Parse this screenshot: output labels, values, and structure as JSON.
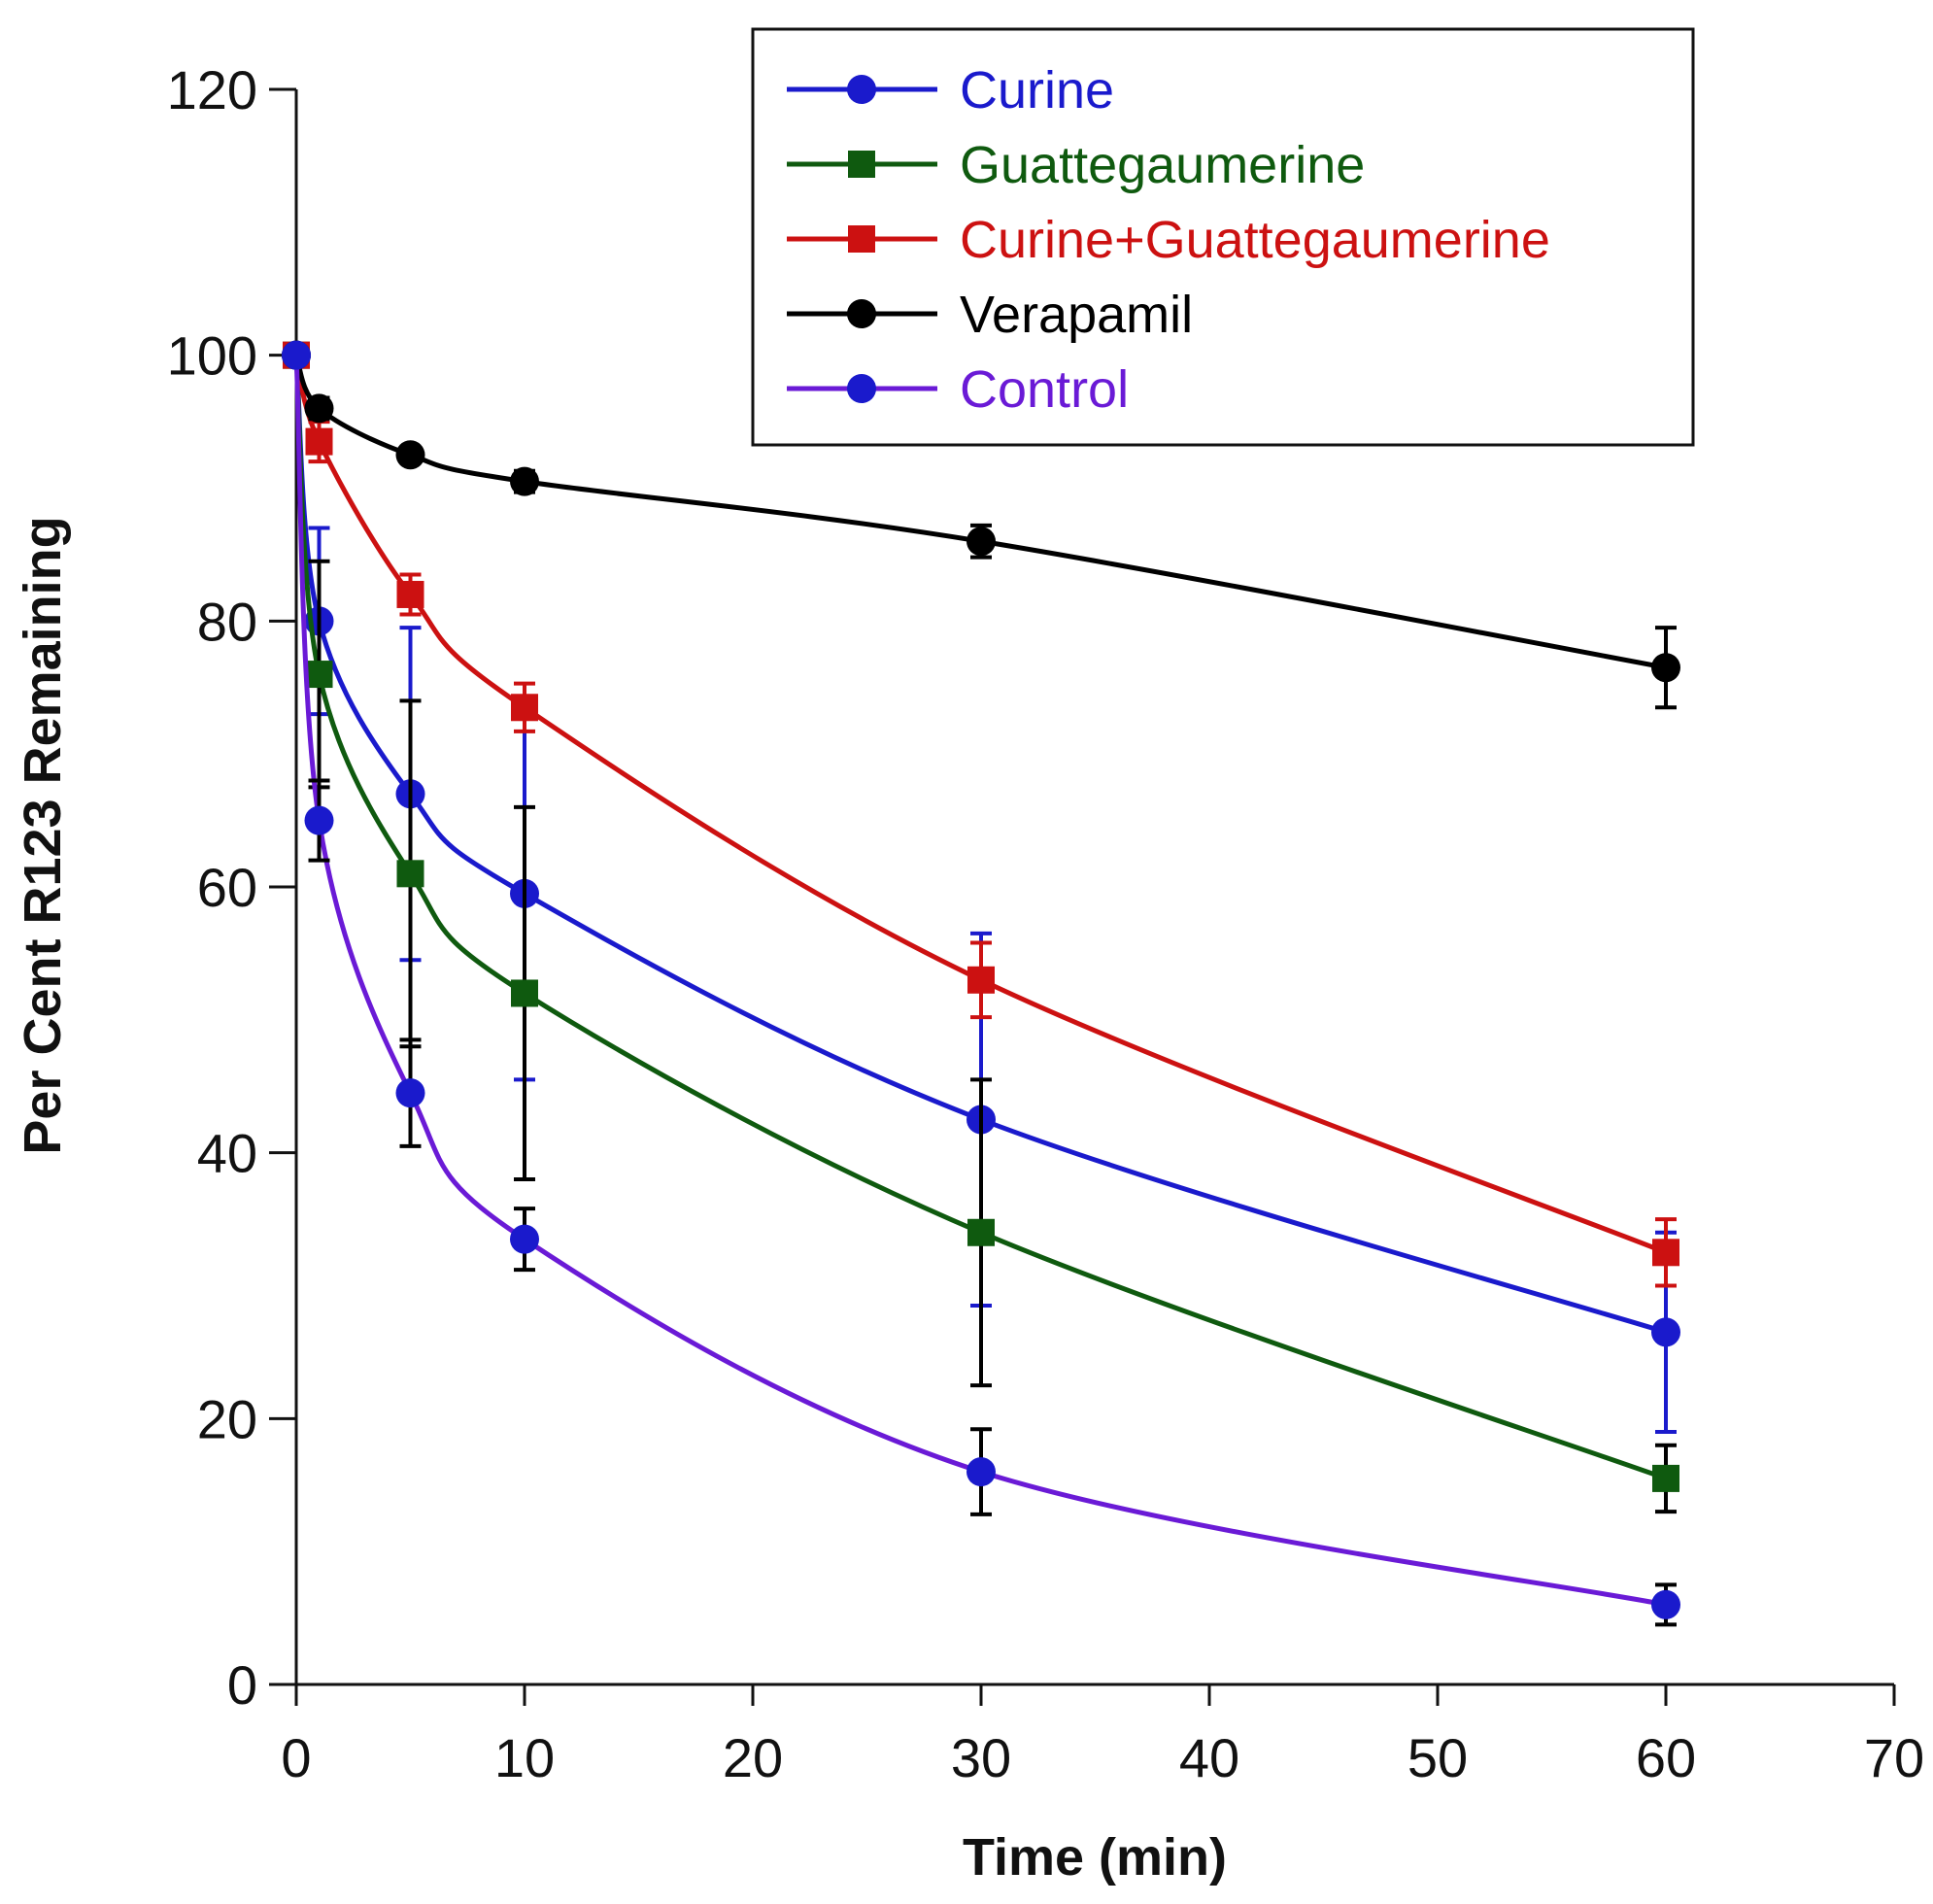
{
  "chart_data": {
    "type": "line",
    "title": "",
    "xlabel": "Time (min)",
    "ylabel": "Per Cent R123 Remaining",
    "xlim": [
      0,
      70
    ],
    "ylim": [
      0,
      120
    ],
    "xticks": [
      0,
      10,
      20,
      30,
      40,
      50,
      60,
      70
    ],
    "yticks": [
      0,
      20,
      40,
      60,
      80,
      100,
      120
    ],
    "xtick_labels": [
      "0",
      "10",
      "20",
      "30",
      "40",
      "50",
      "60",
      "70"
    ],
    "ytick_labels": [
      "0",
      "20",
      "40",
      "60",
      "80",
      "100",
      "120"
    ],
    "grid": false,
    "legend_position": "top-center",
    "x": [
      0,
      1,
      5,
      10,
      30,
      60
    ],
    "series": [
      {
        "name": "Curine",
        "color": "#1a1acc",
        "marker": "circle",
        "values": [
          100,
          80,
          67,
          59.5,
          42.5,
          26.5
        ],
        "errors": [
          0,
          7,
          12.5,
          14,
          14,
          7.5
        ]
      },
      {
        "name": "Guattegaumerine",
        "color": "#0f5a0f",
        "error_color": "#000000",
        "marker": "square",
        "values": [
          100,
          76,
          61,
          52,
          34,
          15.5
        ],
        "errors": [
          0,
          8.5,
          13,
          14,
          11.5,
          2.5
        ]
      },
      {
        "name": "Curine+Guattegaumerine",
        "color": "#cc1111",
        "marker": "square",
        "values": [
          100,
          93.5,
          82,
          73.5,
          53,
          32.5
        ],
        "errors": [
          0,
          1.5,
          1.5,
          1.8,
          2.8,
          2.5
        ]
      },
      {
        "name": "Verapamil",
        "color": "#000000",
        "marker": "circle",
        "values": [
          100,
          96,
          92.5,
          90.5,
          86,
          76.5
        ],
        "errors": [
          0,
          0.8,
          0.5,
          0.8,
          1.2,
          3
        ]
      },
      {
        "name": "Control",
        "color": "#6a1ad6",
        "marker_color": "#1a1acc",
        "error_color": "#000000",
        "marker": "circle",
        "values": [
          100,
          65,
          44.5,
          33.5,
          16,
          6
        ],
        "errors": [
          0,
          3,
          4,
          2.3,
          3.2,
          1.5
        ]
      }
    ]
  }
}
